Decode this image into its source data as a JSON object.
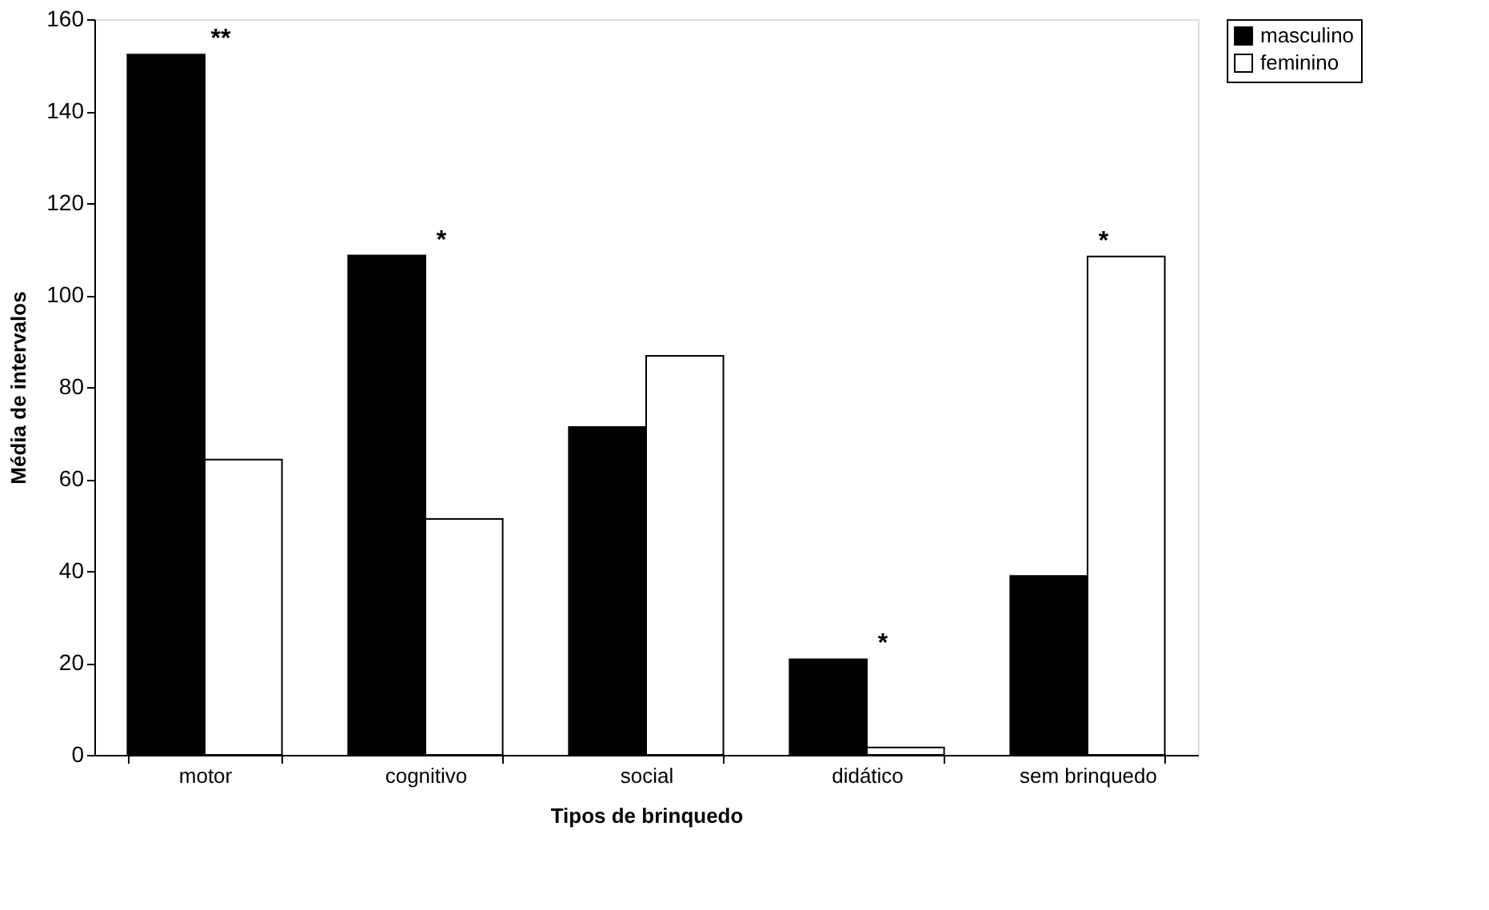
{
  "chart_data": {
    "type": "bar",
    "xlabel": "Tipos de brinquedo",
    "ylabel": "Média de intervalos",
    "categories": [
      "motor",
      "cognitivo",
      "social",
      "didático",
      "sem brinquedo"
    ],
    "series": [
      {
        "name": "masculino",
        "color": "#000000",
        "values": [
          152.3,
          108.6,
          71.3,
          20.8,
          38.9
        ]
      },
      {
        "name": "feminino",
        "color": "#ffffff",
        "values": [
          64.2,
          51.3,
          86.8,
          1.6,
          108.4
        ]
      }
    ],
    "ylim": [
      0,
      160
    ],
    "yticks": [
      0,
      20,
      40,
      60,
      80,
      100,
      120,
      140,
      160
    ],
    "grid": false,
    "legend": "right",
    "annotations": [
      {
        "text": "**",
        "x": "motor",
        "y": 152.3
      },
      {
        "text": "*",
        "x": "cognitivo",
        "y": 108.6
      },
      {
        "text": "*",
        "x": "didático",
        "y": 20.8
      },
      {
        "text": "*",
        "x": "sem brinquedo",
        "y": 108.4
      }
    ]
  }
}
